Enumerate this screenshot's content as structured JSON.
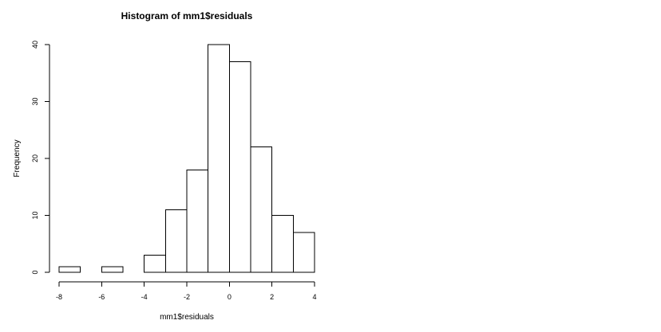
{
  "chart_data": {
    "type": "bar",
    "subtype": "histogram",
    "title": "Histogram of mm1$residuals",
    "xlabel": "mm1$residuals",
    "ylabel": "Frequency",
    "bins": [
      {
        "start": -8,
        "end": -7,
        "count": 1
      },
      {
        "start": -7,
        "end": -6,
        "count": 0
      },
      {
        "start": -6,
        "end": -5,
        "count": 1
      },
      {
        "start": -5,
        "end": -4,
        "count": 0
      },
      {
        "start": -4,
        "end": -3,
        "count": 3
      },
      {
        "start": -3,
        "end": -2,
        "count": 11
      },
      {
        "start": -2,
        "end": -1,
        "count": 18
      },
      {
        "start": -1,
        "end": 0,
        "count": 40
      },
      {
        "start": 0,
        "end": 1,
        "count": 37
      },
      {
        "start": 1,
        "end": 2,
        "count": 22
      },
      {
        "start": 2,
        "end": 3,
        "count": 10
      },
      {
        "start": 3,
        "end": 4,
        "count": 7
      }
    ],
    "xlim": [
      -8,
      4
    ],
    "ylim": [
      0,
      40
    ],
    "x_ticks": [
      -8,
      -6,
      -4,
      -2,
      0,
      2,
      4
    ],
    "y_ticks": [
      0,
      10,
      20,
      30,
      40
    ],
    "x_tick_labels": [
      "-8",
      "-6",
      "-4",
      "-2",
      "0",
      "2",
      "4"
    ],
    "y_tick_labels": [
      "0",
      "10",
      "20",
      "30",
      "40"
    ],
    "grid": false,
    "legend": "none",
    "bar_fill": "#ffffff",
    "bar_stroke": "#000000"
  }
}
